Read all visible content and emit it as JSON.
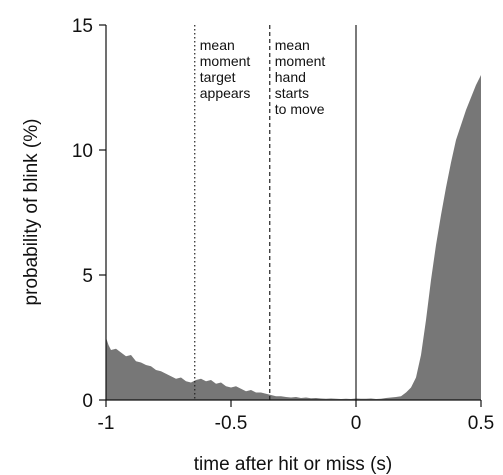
{
  "chart_data": {
    "type": "area",
    "title": "",
    "xlabel": "time after hit or miss (s)",
    "ylabel": "probability of blink (%)",
    "xlim": [
      -1,
      0.5
    ],
    "ylim": [
      0,
      15
    ],
    "xticks": [
      -1,
      -0.5,
      0,
      0.5
    ],
    "xtick_labels": [
      "-1",
      "-0.5",
      "0",
      "0.5"
    ],
    "yticks": [
      0,
      5,
      10,
      15
    ],
    "ytick_labels": [
      "0",
      "5",
      "10",
      "15"
    ],
    "grid": false,
    "legend": "none",
    "fill_color": "#777777",
    "series": [
      {
        "x": [
          -1.0,
          -0.99,
          -0.98,
          -0.96,
          -0.94,
          -0.92,
          -0.9,
          -0.88,
          -0.86,
          -0.84,
          -0.82,
          -0.8,
          -0.78,
          -0.76,
          -0.74,
          -0.72,
          -0.7,
          -0.68,
          -0.66,
          -0.64,
          -0.62,
          -0.6,
          -0.58,
          -0.56,
          -0.54,
          -0.52,
          -0.5,
          -0.48,
          -0.46,
          -0.44,
          -0.42,
          -0.4,
          -0.38,
          -0.36,
          -0.34,
          -0.32,
          -0.3,
          -0.28,
          -0.26,
          -0.24,
          -0.22,
          -0.2,
          -0.18,
          -0.16,
          -0.14,
          -0.12,
          -0.1,
          -0.08,
          -0.06,
          -0.04,
          -0.02,
          0.0,
          0.02,
          0.04,
          0.06,
          0.08,
          0.1,
          0.12,
          0.14,
          0.16,
          0.18,
          0.2,
          0.22,
          0.24,
          0.26,
          0.28,
          0.3,
          0.32,
          0.34,
          0.36,
          0.38,
          0.4,
          0.42,
          0.44,
          0.46,
          0.48,
          0.49,
          0.5
        ],
        "y": [
          2.5,
          2.2,
          2.0,
          2.05,
          1.9,
          1.75,
          1.8,
          1.55,
          1.5,
          1.4,
          1.35,
          1.2,
          1.15,
          1.05,
          0.95,
          0.85,
          0.9,
          0.75,
          0.7,
          0.8,
          0.85,
          0.75,
          0.8,
          0.65,
          0.7,
          0.55,
          0.5,
          0.55,
          0.45,
          0.35,
          0.4,
          0.3,
          0.3,
          0.25,
          0.2,
          0.15,
          0.15,
          0.12,
          0.1,
          0.12,
          0.08,
          0.1,
          0.07,
          0.08,
          0.06,
          0.05,
          0.06,
          0.05,
          0.04,
          0.05,
          0.04,
          0.06,
          0.05,
          0.05,
          0.06,
          0.04,
          0.05,
          0.08,
          0.1,
          0.12,
          0.15,
          0.3,
          0.5,
          0.9,
          1.8,
          3.2,
          4.8,
          6.2,
          7.4,
          8.5,
          9.5,
          10.4,
          11.0,
          11.6,
          12.1,
          12.6,
          12.8,
          13.0
        ]
      }
    ],
    "reference_lines": [
      {
        "x": -0.645,
        "style": "dotted",
        "label": "mean\nmoment\ntarget\nappears"
      },
      {
        "x": -0.345,
        "style": "dashed",
        "label": "mean\nmoment\nhand\nstarts\nto move"
      },
      {
        "x": 0.0,
        "style": "solid",
        "label": ""
      }
    ]
  }
}
